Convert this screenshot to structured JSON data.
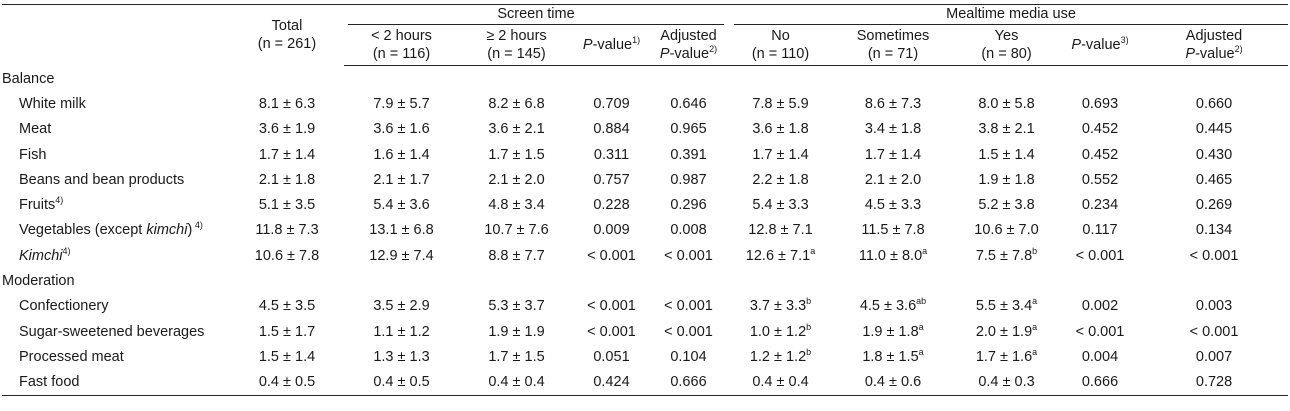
{
  "header": {
    "total": "Total",
    "total_n": "(n = 261)",
    "group_screen": "Screen time",
    "group_media": "Mealtime media use",
    "cols": [
      {
        "l1": "< 2 hours",
        "l2": "(n = 116)"
      },
      {
        "l1": "≥ 2 hours",
        "l2": "(n = 145)"
      },
      {
        "p_italic": "P",
        "p_rest": "-value",
        "p_sup": "1)"
      },
      {
        "l1": "Adjusted",
        "adj_italic": "P",
        "adj_rest": "-value",
        "adj_sup": "2)"
      },
      {
        "l1": "No",
        "l2": "(n = 110)"
      },
      {
        "l1": "Sometimes",
        "l2": "(n = 71)"
      },
      {
        "l1": "Yes",
        "l2": "(n = 80)"
      },
      {
        "p_italic": "P",
        "p_rest": "-value",
        "p_sup": "3)"
      },
      {
        "l1": "Adjusted",
        "adj_italic": "P",
        "adj_rest": "-value",
        "adj_sup": "2)"
      }
    ]
  },
  "sections": [
    {
      "title": "Balance",
      "rows": [
        {
          "label": "White milk",
          "sup": "",
          "v": [
            [
              "8.1 ± 6.3",
              ""
            ],
            [
              "7.9 ± 5.7",
              ""
            ],
            [
              "8.2 ± 6.8",
              ""
            ],
            [
              "0.709",
              ""
            ],
            [
              "0.646",
              ""
            ],
            [
              "7.8 ± 5.9",
              ""
            ],
            [
              "8.6 ± 7.3",
              ""
            ],
            [
              "8.0 ± 5.8",
              ""
            ],
            [
              "0.693",
              ""
            ],
            [
              "0.660",
              ""
            ]
          ]
        },
        {
          "label": "Meat",
          "sup": "",
          "v": [
            [
              "3.6 ± 1.9",
              ""
            ],
            [
              "3.6 ± 1.6",
              ""
            ],
            [
              "3.6 ± 2.1",
              ""
            ],
            [
              "0.884",
              ""
            ],
            [
              "0.965",
              ""
            ],
            [
              "3.6 ± 1.8",
              ""
            ],
            [
              "3.4 ± 1.8",
              ""
            ],
            [
              "3.8 ± 2.1",
              ""
            ],
            [
              "0.452",
              ""
            ],
            [
              "0.445",
              ""
            ]
          ]
        },
        {
          "label": "Fish",
          "sup": "",
          "v": [
            [
              "1.7 ± 1.4",
              ""
            ],
            [
              "1.6 ± 1.4",
              ""
            ],
            [
              "1.7 ± 1.5",
              ""
            ],
            [
              "0.311",
              ""
            ],
            [
              "0.391",
              ""
            ],
            [
              "1.7 ± 1.4",
              ""
            ],
            [
              "1.7 ± 1.4",
              ""
            ],
            [
              "1.5 ± 1.4",
              ""
            ],
            [
              "0.452",
              ""
            ],
            [
              "0.430",
              ""
            ]
          ]
        },
        {
          "label": "Beans and bean products",
          "sup": "",
          "v": [
            [
              "2.1 ± 1.8",
              ""
            ],
            [
              "2.1 ± 1.7",
              ""
            ],
            [
              "2.1 ± 2.0",
              ""
            ],
            [
              "0.757",
              ""
            ],
            [
              "0.987",
              ""
            ],
            [
              "2.2 ± 1.8",
              ""
            ],
            [
              "2.1 ± 2.0",
              ""
            ],
            [
              "1.9 ± 1.8",
              ""
            ],
            [
              "0.552",
              ""
            ],
            [
              "0.465",
              ""
            ]
          ]
        },
        {
          "label": "Fruits",
          "sup": "4)",
          "v": [
            [
              "5.1 ± 3.5",
              ""
            ],
            [
              "5.4 ± 3.6",
              ""
            ],
            [
              "4.8 ± 3.4",
              ""
            ],
            [
              "0.228",
              ""
            ],
            [
              "0.296",
              ""
            ],
            [
              "5.4 ± 3.3",
              ""
            ],
            [
              "4.5 ± 3.3",
              ""
            ],
            [
              "5.2 ± 3.8",
              ""
            ],
            [
              "0.234",
              ""
            ],
            [
              "0.269",
              ""
            ]
          ]
        },
        {
          "label_parts": [
            "Vegetables (except ",
            "kimchi",
            ")"
          ],
          "sup": " 4)",
          "v": [
            [
              "11.8 ± 7.3",
              ""
            ],
            [
              "13.1 ± 6.8",
              ""
            ],
            [
              "10.7 ± 7.6",
              ""
            ],
            [
              "0.009",
              ""
            ],
            [
              "0.008",
              ""
            ],
            [
              "12.8 ± 7.1",
              ""
            ],
            [
              "11.5 ± 7.8",
              ""
            ],
            [
              "10.6 ± 7.0",
              ""
            ],
            [
              "0.117",
              ""
            ],
            [
              "0.134",
              ""
            ]
          ]
        },
        {
          "label_italic": "Kimchi",
          "sup": "4)",
          "v": [
            [
              "10.6 ± 7.8",
              ""
            ],
            [
              "12.9 ± 7.4",
              ""
            ],
            [
              "8.8 ± 7.7",
              ""
            ],
            [
              "< 0.001",
              ""
            ],
            [
              "< 0.001",
              ""
            ],
            [
              "12.6 ± 7.1",
              "a"
            ],
            [
              "11.0 ± 8.0",
              "a"
            ],
            [
              "7.5 ± 7.8",
              "b"
            ],
            [
              "< 0.001",
              ""
            ],
            [
              "< 0.001",
              ""
            ]
          ]
        }
      ]
    },
    {
      "title": "Moderation",
      "rows": [
        {
          "label": "Confectionery",
          "sup": "",
          "v": [
            [
              "4.5 ± 3.5",
              ""
            ],
            [
              "3.5 ± 2.9",
              ""
            ],
            [
              "5.3 ± 3.7",
              ""
            ],
            [
              "< 0.001",
              ""
            ],
            [
              "< 0.001",
              ""
            ],
            [
              "3.7 ± 3.3",
              "b"
            ],
            [
              "4.5 ± 3.6",
              "ab"
            ],
            [
              "5.5 ± 3.4",
              "a"
            ],
            [
              "0.002",
              ""
            ],
            [
              "0.003",
              ""
            ]
          ]
        },
        {
          "label": "Sugar-sweetened beverages",
          "sup": "",
          "v": [
            [
              "1.5 ± 1.7",
              ""
            ],
            [
              "1.1 ± 1.2",
              ""
            ],
            [
              "1.9 ± 1.9",
              ""
            ],
            [
              "< 0.001",
              ""
            ],
            [
              "< 0.001",
              ""
            ],
            [
              "1.0 ± 1.2",
              "b"
            ],
            [
              "1.9 ± 1.8",
              "a"
            ],
            [
              "2.0 ± 1.9",
              "a"
            ],
            [
              "< 0.001",
              ""
            ],
            [
              "< 0.001",
              ""
            ]
          ]
        },
        {
          "label": "Processed meat",
          "sup": "",
          "v": [
            [
              "1.5 ± 1.4",
              ""
            ],
            [
              "1.3 ± 1.3",
              ""
            ],
            [
              "1.7 ± 1.5",
              ""
            ],
            [
              "0.051",
              ""
            ],
            [
              "0.104",
              ""
            ],
            [
              "1.2 ± 1.2",
              "b"
            ],
            [
              "1.8 ± 1.5",
              "a"
            ],
            [
              "1.7 ± 1.6",
              "a"
            ],
            [
              "0.004",
              ""
            ],
            [
              "0.007",
              ""
            ]
          ]
        },
        {
          "label": "Fast food",
          "sup": "",
          "v": [
            [
              "0.4 ± 0.5",
              ""
            ],
            [
              "0.4 ± 0.5",
              ""
            ],
            [
              "0.4 ± 0.4",
              ""
            ],
            [
              "0.424",
              ""
            ],
            [
              "0.666",
              ""
            ],
            [
              "0.4 ± 0.4",
              ""
            ],
            [
              "0.4 ± 0.6",
              ""
            ],
            [
              "0.4 ± 0.3",
              ""
            ],
            [
              "0.666",
              ""
            ],
            [
              "0.728",
              ""
            ]
          ]
        }
      ]
    }
  ]
}
